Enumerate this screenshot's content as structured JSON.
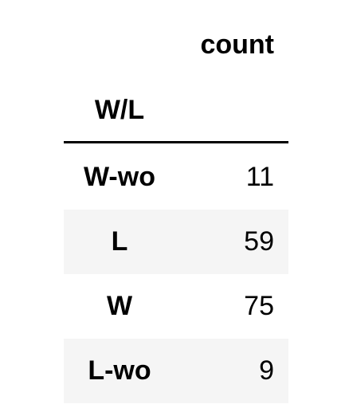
{
  "table": {
    "value_header": "count",
    "index_header": "W/L",
    "rows": [
      {
        "label": "W-wo",
        "count": "11"
      },
      {
        "label": "L",
        "count": "59"
      },
      {
        "label": "W",
        "count": "75"
      },
      {
        "label": "L-wo",
        "count": "9"
      }
    ]
  },
  "chart_data": {
    "type": "table",
    "columns": [
      "W/L",
      "count"
    ],
    "rows": [
      [
        "W-wo",
        11
      ],
      [
        "L",
        59
      ],
      [
        "W",
        75
      ],
      [
        "L-wo",
        9
      ]
    ]
  }
}
